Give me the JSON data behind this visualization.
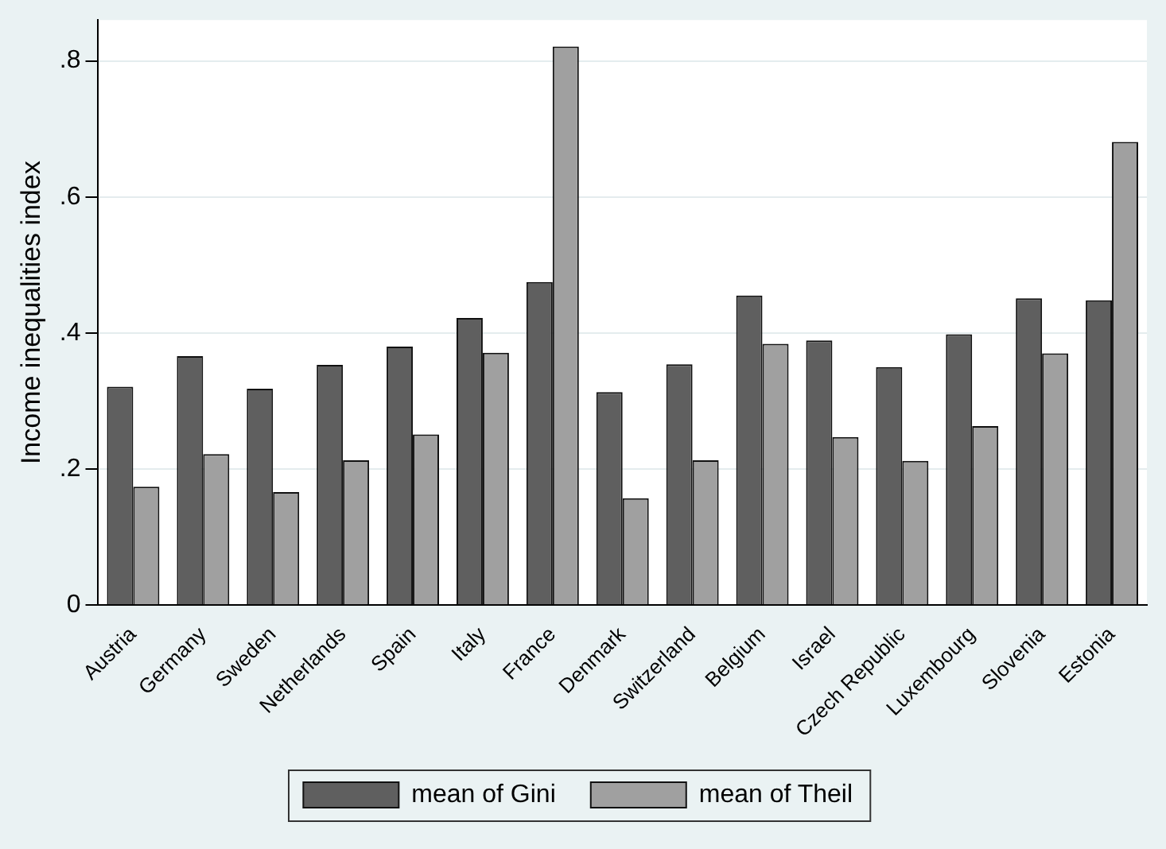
{
  "chart_data": {
    "type": "bar",
    "ylabel": "Income inequalities index",
    "categories": [
      "Austria",
      "Germany",
      "Sweden",
      "Netherlands",
      "Spain",
      "Italy",
      "France",
      "Denmark",
      "Switzerland",
      "Belgium",
      "Israel",
      "Czech Republic",
      "Luxembourg",
      "Slovenia",
      "Estonia"
    ],
    "series": [
      {
        "name": "mean of Gini",
        "color": "#5f5f5f",
        "values": [
          0.321,
          0.366,
          0.318,
          0.353,
          0.38,
          0.422,
          0.475,
          0.313,
          0.354,
          0.455,
          0.389,
          0.35,
          0.398,
          0.451,
          0.448
        ]
      },
      {
        "name": "mean of Theil",
        "color": "#a0a0a0",
        "values": [
          0.174,
          0.222,
          0.166,
          0.213,
          0.251,
          0.371,
          0.821,
          0.157,
          0.213,
          0.384,
          0.247,
          0.212,
          0.263,
          0.37,
          0.681
        ]
      }
    ],
    "ylim": [
      0,
      0.86
    ],
    "yticks": [
      0,
      {
        "value": 0.2,
        "label": ".2"
      },
      {
        "value": 0.4,
        "label": ".4"
      },
      {
        "value": 0.6,
        "label": ".6"
      },
      {
        "value": 0.8,
        "label": ".8"
      }
    ],
    "grid": "y",
    "legend": "bottom"
  }
}
